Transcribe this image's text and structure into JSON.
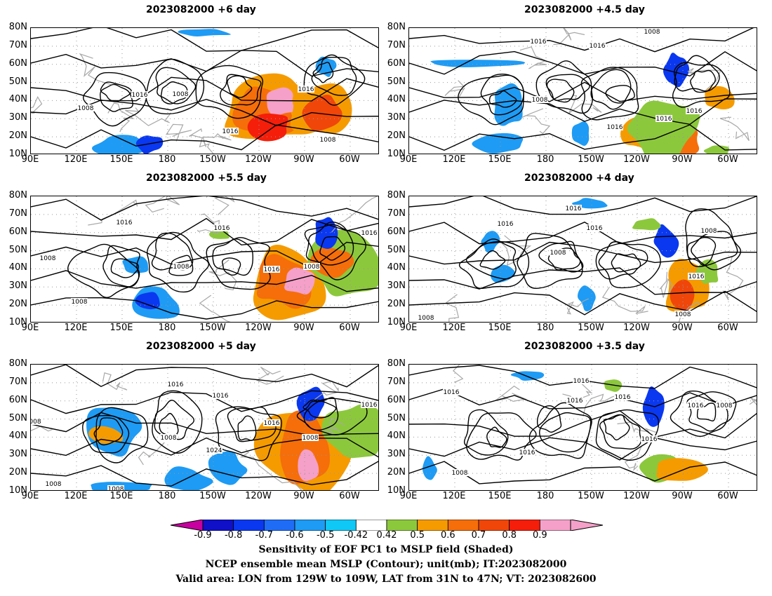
{
  "panels": [
    {
      "title": "2023082000  +6 day",
      "contour_labels": [
        "1016",
        "1008",
        "1016",
        "1008",
        "1016",
        "1008"
      ]
    },
    {
      "title": "2023082000  +4.5 day",
      "contour_labels": [
        "1008",
        "1016",
        "1016",
        "1008",
        "1016",
        "1016",
        "1016"
      ]
    },
    {
      "title": "2023082000  +5.5 day",
      "contour_labels": [
        "1016",
        "1016",
        "1008",
        "1008",
        "1016",
        "1008",
        "1016",
        "1008"
      ]
    },
    {
      "title": "2023082000  +4 day",
      "contour_labels": [
        "1016",
        "1016",
        "1016",
        "1008",
        "1008",
        "1016",
        "1008",
        "1008"
      ]
    },
    {
      "title": "2023082000  +5 day",
      "contour_labels": [
        "1016",
        "1016",
        "1008",
        "1024",
        "1016",
        "1008",
        "1016",
        "008",
        "1008",
        "1008"
      ]
    },
    {
      "title": "2023082000  +3.5 day",
      "contour_labels": [
        "1016",
        "1016",
        "1016",
        "1016",
        "1016",
        "1008",
        "1016",
        "1016",
        "1008"
      ]
    }
  ],
  "y_axis_labels": [
    "80N",
    "70N",
    "60N",
    "50N",
    "40N",
    "30N",
    "20N",
    "10N"
  ],
  "x_axis_labels": [
    "90E",
    "120E",
    "150E",
    "180",
    "150W",
    "120W",
    "90W",
    "60W"
  ],
  "colorbar": {
    "labels": [
      "-0.9",
      "-0.8",
      "-0.7",
      "-0.6",
      "-0.5",
      "-0.42",
      "0.42",
      "0.5",
      "0.6",
      "0.7",
      "0.8",
      "0.9"
    ],
    "colors": [
      "#ffffff",
      "#1010c8",
      "#0a38f0",
      "#1f6df7",
      "#1e9bf4",
      "#10c8f5",
      "#ffffff",
      "#8cc83c",
      "#f59b00",
      "#f56e0a",
      "#f0460a",
      "#f51e0a",
      "#f5a0c8"
    ],
    "low_end": "#c800a0",
    "high_end": "#f5a0c8"
  },
  "caption": {
    "line1": "Sensitivity of EOF PC1 to MSLP field (Shaded)",
    "line2": "NCEP ensemble mean MSLP (Contour); unit(mb); IT:2023082000",
    "line3": "Valid area: LON from 129W to 109W, LAT from 31N to 47N; VT: 2023082600"
  }
}
